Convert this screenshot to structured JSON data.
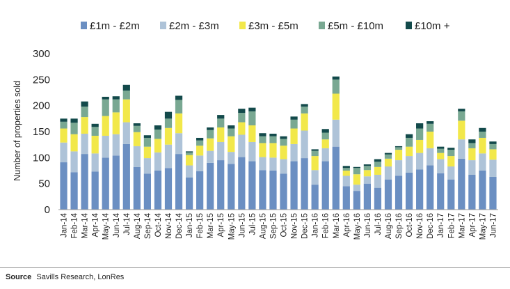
{
  "chart_data": {
    "type": "bar",
    "stacked": true,
    "ylabel": "Number of properties sold",
    "ylim": [
      0,
      300
    ],
    "yticks": [
      0,
      50,
      100,
      150,
      200,
      250,
      300
    ],
    "grid": false,
    "legend_position": "top",
    "categories": [
      "Jan-14",
      "Feb-14",
      "Mar-14",
      "Apr-14",
      "May-14",
      "Jun-14",
      "Jul-14",
      "Aug-14",
      "Sep-14",
      "Oct-14",
      "Nov-14",
      "Dec-14",
      "Jan-15",
      "Feb-15",
      "Mar-15",
      "Apr-15",
      "May-15",
      "Jun-15",
      "Jul-15",
      "Aug-15",
      "Sep-15",
      "Oct-15",
      "Nov-15",
      "Dec-15",
      "Jan-16",
      "Feb-16",
      "Mar-16",
      "Apr-16",
      "May-16",
      "Jun-16",
      "Jul-16",
      "Aug-16",
      "Sep-16",
      "Oct-16",
      "Nov-16",
      "Dec-16",
      "Jan-17",
      "Feb-17",
      "Mar-17",
      "Apr-17",
      "May-17",
      "Jun-17"
    ],
    "series": [
      {
        "name": "£1m - £2m",
        "color": "#6b8fc2",
        "values": [
          91,
          72,
          107,
          73,
          100,
          104,
          126,
          82,
          69,
          75,
          80,
          107,
          62,
          74,
          90,
          95,
          88,
          101,
          93,
          76,
          75,
          69,
          93,
          99,
          48,
          93,
          121,
          45,
          36,
          50,
          42,
          58,
          65,
          71,
          77,
          85,
          70,
          58,
          98,
          67,
          75,
          63
        ]
      },
      {
        "name": "£2m - £3m",
        "color": "#aec3d8",
        "values": [
          38,
          40,
          39,
          35,
          42,
          41,
          42,
          40,
          30,
          35,
          45,
          40,
          23,
          30,
          23,
          35,
          23,
          43,
          37,
          25,
          25,
          28,
          33,
          53,
          28,
          25,
          52,
          20,
          12,
          14,
          25,
          25,
          30,
          32,
          32,
          33,
          27,
          25,
          37,
          28,
          33,
          33
        ]
      },
      {
        "name": "£3m - £5m",
        "color": "#f2e84a",
        "values": [
          27,
          33,
          32,
          34,
          38,
          42,
          44,
          27,
          22,
          26,
          32,
          38,
          20,
          19,
          24,
          28,
          30,
          24,
          32,
          27,
          28,
          26,
          30,
          33,
          27,
          17,
          50,
          10,
          20,
          12,
          15,
          15,
          20,
          18,
          25,
          32,
          12,
          20,
          36,
          23,
          30,
          20
        ]
      },
      {
        "name": "£5m - £10m",
        "color": "#79a892",
        "values": [
          13,
          22,
          20,
          17,
          32,
          25,
          17,
          12,
          17,
          18,
          18,
          26,
          5,
          10,
          16,
          17,
          15,
          18,
          27,
          13,
          13,
          13,
          17,
          13,
          10,
          13,
          27,
          5,
          12,
          8,
          10,
          8,
          5,
          17,
          22,
          15,
          8,
          12,
          18,
          10,
          12,
          10
        ]
      },
      {
        "name": "£10m +",
        "color": "#134a4b",
        "values": [
          6,
          8,
          10,
          6,
          5,
          6,
          11,
          5,
          5,
          8,
          13,
          8,
          2,
          5,
          5,
          7,
          6,
          8,
          7,
          6,
          5,
          5,
          6,
          5,
          3,
          7,
          6,
          4,
          2,
          3,
          5,
          3,
          2,
          7,
          10,
          5,
          4,
          4,
          5,
          7,
          7,
          5
        ]
      }
    ]
  },
  "source": {
    "label": "Source",
    "text": "Savills Research, LonRes"
  }
}
